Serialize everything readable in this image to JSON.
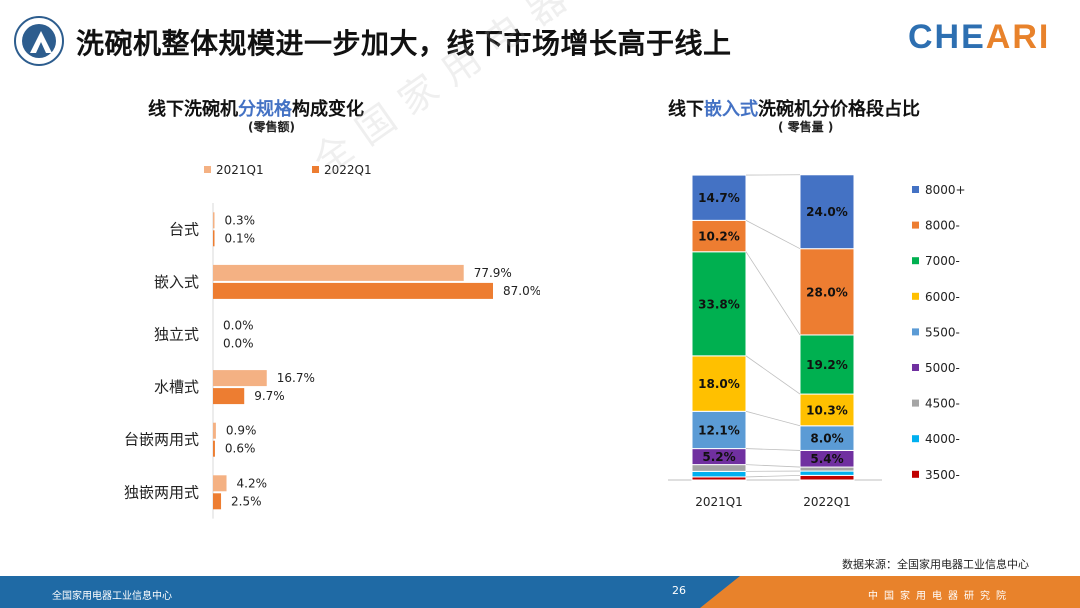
{
  "header": {
    "title": "洗碗机整体规模进一步加大，线下市场增长高于线上",
    "brand_a": "CHE",
    "brand_b": "ARI"
  },
  "left_chart": {
    "title_a": "线下洗碗机",
    "title_hl": "分规格",
    "title_b": "构成变化",
    "subtitle": "(零售额)"
  },
  "right_chart": {
    "title_a": "线下",
    "title_hl": "嵌入式",
    "title_b": "洗碗机分价格段占比",
    "subtitle": "( 零售量 )"
  },
  "watermark": "全国家用电器工业信息中心",
  "source": "数据来源：全国家用电器工业信息中心",
  "footer": {
    "left": "全国家用电器工业信息中心",
    "page": "26",
    "right": "中国家用电器研究院"
  },
  "colors": {
    "q2021": "#f4b183",
    "q2022": "#ed7d31",
    "brand_blue": "#2d6fb1"
  },
  "chart_data": [
    {
      "type": "bar",
      "orientation": "horizontal",
      "categories": [
        "台式",
        "嵌入式",
        "独立式",
        "水槽式",
        "台嵌两用式",
        "独嵌两用式"
      ],
      "series": [
        {
          "name": "2021Q1",
          "values": [
            0.3,
            77.9,
            0.0,
            16.7,
            0.9,
            4.2
          ],
          "labels": [
            "0.3%",
            "77.9%",
            "0.0%",
            "16.7%",
            "0.9%",
            "4.2%"
          ],
          "color": "#f4b183"
        },
        {
          "name": "2022Q1",
          "values": [
            0.1,
            87.0,
            0.0,
            9.7,
            0.6,
            2.5
          ],
          "labels": [
            "0.1%",
            "87.0%",
            "0.0%",
            "9.7%",
            "0.6%",
            "2.5%"
          ],
          "color": "#ed7d31"
        }
      ],
      "legend": "top",
      "grid": false
    },
    {
      "type": "bar",
      "stacked": true,
      "percent": true,
      "categories": [
        "2021Q1",
        "2022Q1"
      ],
      "series": [
        {
          "name": "3500-",
          "values": [
            1.0,
            1.5
          ],
          "color": "#c00000"
        },
        {
          "name": "4000-",
          "values": [
            1.8,
            1.4
          ],
          "color": "#00b0f0"
        },
        {
          "name": "4500-",
          "values": [
            2.2,
            1.3
          ],
          "color": "#a5a5a5"
        },
        {
          "name": "5000-",
          "values": [
            5.2,
            5.4
          ],
          "label": [
            "5.2%",
            "5.4%"
          ],
          "color": "#7030a0"
        },
        {
          "name": "5500-",
          "values": [
            12.1,
            8.0
          ],
          "label": [
            "12.1%",
            "8.0%"
          ],
          "color": "#5b9bd5"
        },
        {
          "name": "6000-",
          "values": [
            18.0,
            10.3
          ],
          "label": [
            "18.0%",
            "10.3%"
          ],
          "color": "#ffc000"
        },
        {
          "name": "7000-",
          "values": [
            33.8,
            19.2
          ],
          "label": [
            "33.8%",
            "19.2%"
          ],
          "color": "#00b050"
        },
        {
          "name": "8000-",
          "values": [
            10.2,
            28.0
          ],
          "label": [
            "10.2%",
            "28.0%"
          ],
          "color": "#ed7d31"
        },
        {
          "name": "8000+",
          "values": [
            14.7,
            24.0
          ],
          "label": [
            "14.7%",
            "24.0%"
          ],
          "color": "#4472c4"
        }
      ],
      "ylim": [
        0,
        100
      ],
      "legend": "right",
      "grid": false
    }
  ]
}
